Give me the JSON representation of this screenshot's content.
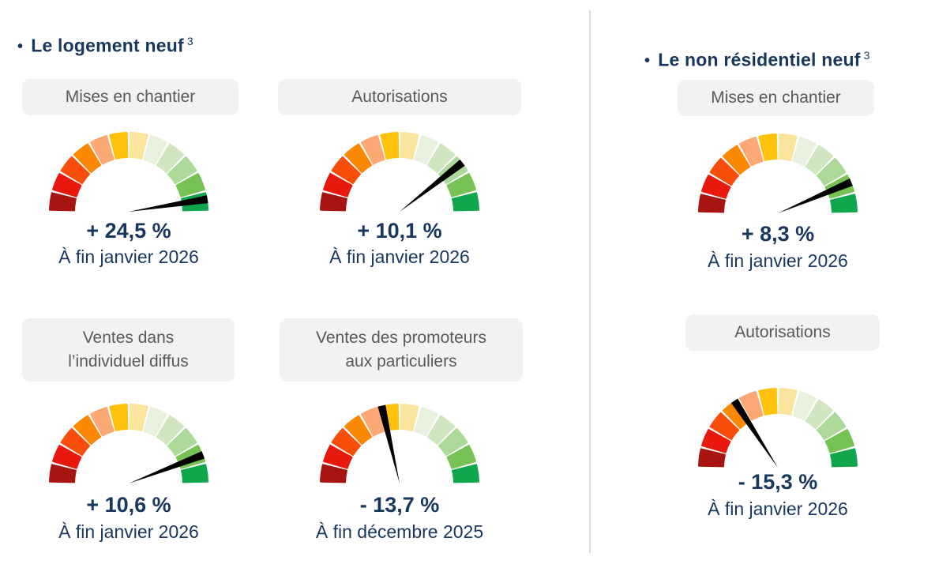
{
  "left_section": {
    "bullet": "•",
    "title": "Le logement neuf",
    "title_sup": "3"
  },
  "right_section": {
    "bullet": "•",
    "title": "Le non résidentiel neuf",
    "title_sup": "3"
  },
  "colors": {
    "title_navy": "#17375e",
    "pill_background": "#f2f2f2",
    "pill_text": "#595959",
    "divider": "#d9d9d9",
    "needle": "#000000"
  },
  "gauge_style": {
    "start_angle_deg": 180,
    "end_angle_deg": 0,
    "segments": 12,
    "segment_colors": [
      "#a81410",
      "#e8190c",
      "#f94d0b",
      "#fa8803",
      "#fba875",
      "#fec20d",
      "#fbe49e",
      "#e8f1e0",
      "#cfe6c1",
      "#acd89a",
      "#77c254",
      "#10a64b"
    ],
    "gap_deg": 1.3,
    "outer_radius": 100,
    "inner_radius": 69,
    "needle_color": "#000000",
    "needle_length": 101,
    "needle_tip_width": 10
  },
  "chart_data": [
    {
      "type": "gauge",
      "section": "Le logement neuf",
      "label": "Mises en chantier",
      "value": 24.5,
      "unit": "%",
      "value_text": "+ 24,5 %",
      "period": "À fin janvier 2026",
      "needle_angle_deg": 9
    },
    {
      "type": "gauge",
      "section": "Le logement neuf",
      "label": "Autorisations",
      "value": 10.1,
      "unit": "%",
      "value_text": "+ 10,1 %",
      "period": "À fin janvier 2026",
      "needle_angle_deg": 38
    },
    {
      "type": "gauge",
      "section": "Le logement neuf",
      "label": "Ventes dans\nl’individuel diffus",
      "value": 10.6,
      "unit": "%",
      "value_text": "+ 10,6 %",
      "period": "À fin janvier 2026",
      "needle_angle_deg": 21
    },
    {
      "type": "gauge",
      "section": "Le logement neuf",
      "label": "Ventes des promoteurs\naux particuliers",
      "value": -13.7,
      "unit": "%",
      "value_text": "- 13,7 %",
      "period": "À fin décembre 2025",
      "needle_angle_deg": 103
    },
    {
      "type": "gauge",
      "section": "Le non résidentiel neuf",
      "label": "Mises en chantier",
      "value": 8.3,
      "unit": "%",
      "value_text": "+ 8,3 %",
      "period": "À fin janvier 2026",
      "needle_angle_deg": 23
    },
    {
      "type": "gauge",
      "section": "Le non résidentiel neuf",
      "label": "Autorisations",
      "value": -15.3,
      "unit": "%",
      "value_text": "- 15,3 %",
      "period": "À fin janvier 2026",
      "needle_angle_deg": 123
    }
  ]
}
